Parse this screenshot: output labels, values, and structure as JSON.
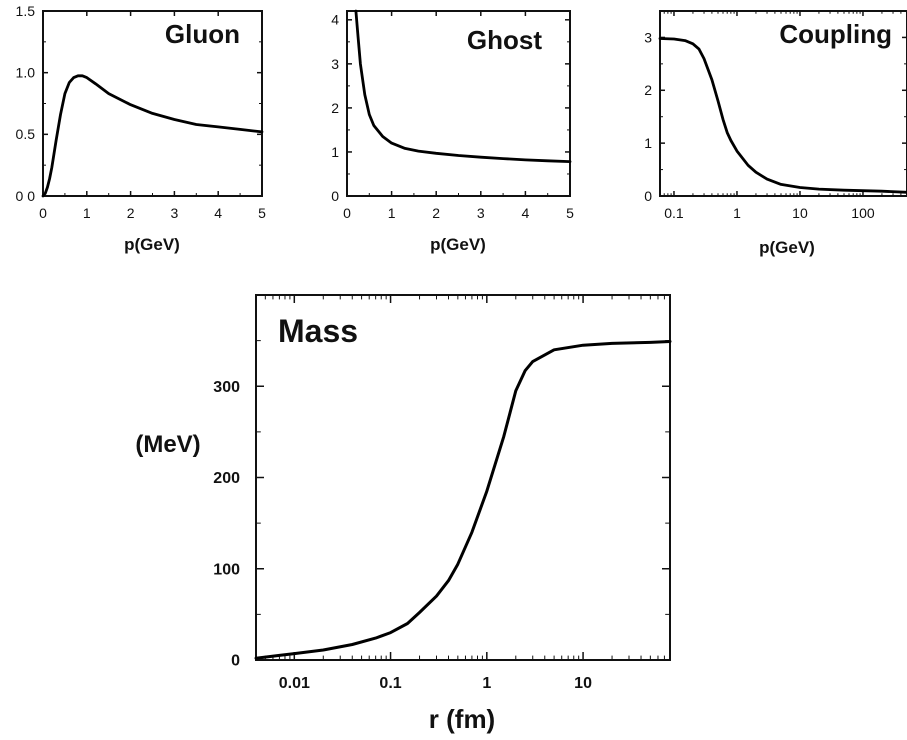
{
  "chart_data": [
    {
      "type": "line",
      "title": "Gluon",
      "xlabel": "p(GeV)",
      "ylabel": "",
      "xlim": [
        0,
        5
      ],
      "ylim": [
        0,
        1.5
      ],
      "x_ticks": [
        "0",
        "1",
        "2",
        "3",
        "4",
        "5"
      ],
      "y_ticks": [
        "0 0",
        "0.5",
        "1.0",
        "1.5"
      ],
      "series": [
        {
          "x": [
            0,
            0.05,
            0.1,
            0.15,
            0.2,
            0.3,
            0.4,
            0.5,
            0.6,
            0.7,
            0.8,
            0.9,
            1.0,
            1.2,
            1.5,
            2.0,
            2.5,
            3.0,
            3.5,
            4.0,
            4.5,
            5.0
          ],
          "y": [
            0,
            0.02,
            0.07,
            0.14,
            0.23,
            0.45,
            0.66,
            0.83,
            0.92,
            0.96,
            0.975,
            0.975,
            0.96,
            0.91,
            0.83,
            0.74,
            0.67,
            0.62,
            0.58,
            0.56,
            0.54,
            0.52
          ]
        }
      ]
    },
    {
      "type": "line",
      "title": "Ghost",
      "xlabel": "p(GeV)",
      "ylabel": "",
      "xlim": [
        0,
        5
      ],
      "ylim": [
        0,
        4.2
      ],
      "x_ticks": [
        "0",
        "1",
        "2",
        "3",
        "4",
        "5"
      ],
      "y_ticks": [
        "0",
        "1",
        "2",
        "3",
        "4"
      ],
      "series": [
        {
          "x": [
            0.2,
            0.25,
            0.3,
            0.4,
            0.5,
            0.6,
            0.8,
            1.0,
            1.3,
            1.6,
            2.0,
            2.5,
            3.0,
            3.5,
            4.0,
            4.5,
            5.0
          ],
          "y": [
            4.2,
            3.6,
            3.0,
            2.3,
            1.85,
            1.6,
            1.35,
            1.2,
            1.08,
            1.02,
            0.97,
            0.92,
            0.88,
            0.85,
            0.82,
            0.8,
            0.78
          ]
        }
      ]
    },
    {
      "type": "line",
      "title": "Coupling",
      "xlabel": "p(GeV)",
      "ylabel": "",
      "x_scale": "log",
      "xlim": [
        0.06,
        500
      ],
      "ylim": [
        0,
        3.5
      ],
      "x_ticks": [
        "0.1",
        "1",
        "10",
        "100"
      ],
      "y_ticks": [
        "0",
        "1",
        "2",
        "3"
      ],
      "series": [
        {
          "x": [
            0.06,
            0.1,
            0.15,
            0.2,
            0.25,
            0.3,
            0.4,
            0.5,
            0.6,
            0.7,
            0.8,
            1.0,
            1.5,
            2,
            3,
            5,
            10,
            20,
            50,
            100,
            200,
            500
          ],
          "y": [
            2.98,
            2.97,
            2.94,
            2.88,
            2.78,
            2.6,
            2.2,
            1.8,
            1.45,
            1.2,
            1.05,
            0.85,
            0.58,
            0.45,
            0.32,
            0.22,
            0.16,
            0.13,
            0.11,
            0.1,
            0.09,
            0.07
          ]
        }
      ]
    },
    {
      "type": "line",
      "title": "Mass",
      "xlabel": "r (fm)",
      "ylabel": "(MeV)",
      "x_scale": "log",
      "xlim": [
        0.004,
        80
      ],
      "ylim": [
        0,
        400
      ],
      "x_ticks": [
        "0.01",
        "0.1",
        "1",
        "10"
      ],
      "y_ticks": [
        "0",
        "100",
        "200",
        "300"
      ],
      "series": [
        {
          "x": [
            0.004,
            0.007,
            0.01,
            0.02,
            0.04,
            0.07,
            0.1,
            0.15,
            0.2,
            0.3,
            0.4,
            0.5,
            0.7,
            1.0,
            1.5,
            2.0,
            2.5,
            3,
            5,
            10,
            20,
            50,
            80
          ],
          "y": [
            2,
            5,
            7,
            11,
            17,
            24,
            30,
            40,
            52,
            70,
            87,
            105,
            140,
            185,
            245,
            295,
            317,
            327,
            340,
            345,
            347,
            348,
            349
          ]
        }
      ]
    }
  ]
}
